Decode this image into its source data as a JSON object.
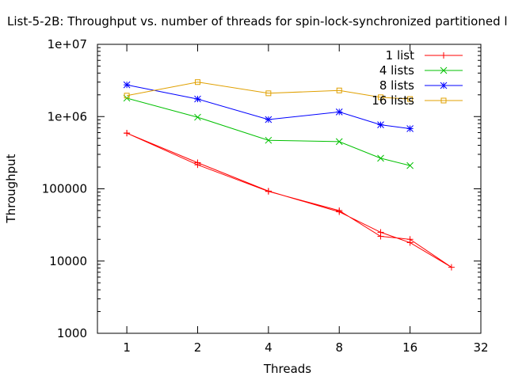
{
  "chart_data": {
    "type": "line",
    "title": "List-5-2B: Throughput vs. number of threads for spin-lock-synchronized partitioned lists",
    "xlabel": "Threads",
    "ylabel": "Throughput",
    "xscale": "log2",
    "yscale": "log10",
    "xlim": [
      0.75,
      32
    ],
    "ylim": [
      1000,
      10000000
    ],
    "xticks": [
      {
        "value": 1,
        "label": "1"
      },
      {
        "value": 2,
        "label": "2"
      },
      {
        "value": 4,
        "label": "4"
      },
      {
        "value": 8,
        "label": "8"
      },
      {
        "value": 16,
        "label": "16"
      },
      {
        "value": 32,
        "label": "32"
      }
    ],
    "yticks": [
      {
        "value": 1000,
        "label": "1000"
      },
      {
        "value": 10000,
        "label": "10000"
      },
      {
        "value": 100000,
        "label": "100000"
      },
      {
        "value": 1000000,
        "label": "1e+06"
      },
      {
        "value": 10000000,
        "label": "1e+07"
      }
    ],
    "grid": false,
    "legend_position": "top-right",
    "series": [
      {
        "name": "1 list",
        "color": "#ff0000",
        "marker": "plus",
        "points": [
          [
            1,
            590000
          ],
          [
            2,
            230000
          ],
          [
            4,
            93000
          ],
          [
            8,
            48000
          ],
          [
            12,
            25000
          ],
          [
            16,
            18000
          ],
          [
            24,
            8200
          ],
          [
            16,
            20000
          ],
          [
            12,
            22000
          ],
          [
            8,
            50000
          ],
          [
            4,
            92000
          ],
          [
            2,
            215000
          ],
          [
            1,
            590000
          ]
        ]
      },
      {
        "name": "4 lists",
        "color": "#00c000",
        "marker": "cross",
        "points": [
          [
            1,
            1800000
          ],
          [
            2,
            980000
          ],
          [
            4,
            470000
          ],
          [
            8,
            450000
          ],
          [
            12,
            265000
          ],
          [
            16,
            210000
          ]
        ]
      },
      {
        "name": "8 lists",
        "color": "#0000ff",
        "marker": "star",
        "points": [
          [
            1,
            2750000
          ],
          [
            2,
            1750000
          ],
          [
            4,
            910000
          ],
          [
            8,
            1160000
          ],
          [
            12,
            770000
          ],
          [
            16,
            680000
          ]
        ]
      },
      {
        "name": "16 lists",
        "color": "#e0a000",
        "marker": "square",
        "points": [
          [
            1,
            1950000
          ],
          [
            2,
            3000000
          ],
          [
            4,
            2100000
          ],
          [
            8,
            2300000
          ],
          [
            12,
            1850000
          ],
          [
            16,
            1750000
          ]
        ]
      }
    ]
  }
}
